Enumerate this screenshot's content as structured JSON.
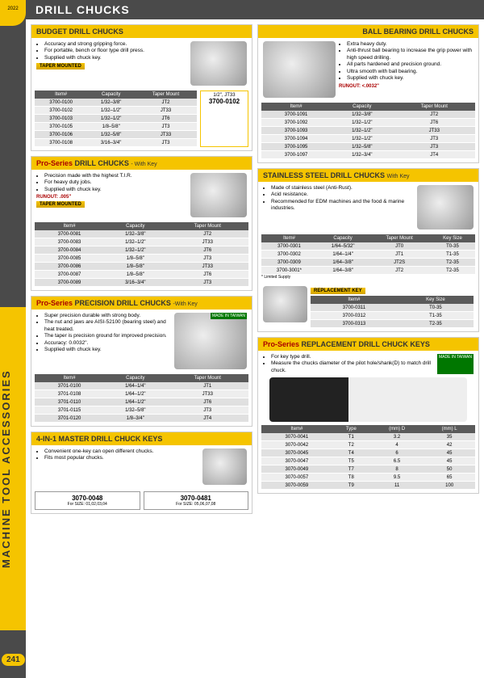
{
  "header": "DRILL CHUCKS",
  "sidebar": "MACHINE TOOL ACCESSORIES",
  "pageNum": "241",
  "badge": "2022",
  "budget": {
    "title": "BUDGET DRILL CHUCKS",
    "bullets": [
      "Accuracy and strong gripping force.",
      "For portable, bench or floor type drill press.",
      "Supplied with chuck key."
    ],
    "tag": "TAPER MOUNTED",
    "callout": {
      "top": "1/2\", JT33",
      "num": "3700-0102"
    },
    "cols": [
      "Item#",
      "Capacity",
      "Taper Mount"
    ],
    "rows": [
      [
        "3700-0100",
        "1/32–3/8\"",
        "JT2"
      ],
      [
        "3700-0102",
        "1/32–1/2\"",
        "JT33"
      ],
      [
        "3700-0103",
        "1/32–1/2\"",
        "JT6"
      ],
      [
        "3700-0105",
        "1/8–5/8\"",
        "JT3"
      ],
      [
        "3700-0106",
        "1/32–5/8\"",
        "JT33"
      ],
      [
        "3700-0108",
        "3/16–3/4\"",
        "JT3"
      ]
    ]
  },
  "proKey": {
    "title1": "Pro-Series ",
    "title2": "DRILL CHUCKS",
    "sub": "- With Key",
    "bullets": [
      "Precision made with the highest T.I.R.",
      "For heavy duty jobs.",
      "Supplied with chuck key."
    ],
    "runout": "RUNOUT: .005\"",
    "tag": "TAPER MOUNTED",
    "cols": [
      "Item#",
      "Capacity",
      "Taper Mount"
    ],
    "rows": [
      [
        "3700-0081",
        "1/32–3/8\"",
        "JT2"
      ],
      [
        "3700-0083",
        "1/32–1/2\"",
        "JT33"
      ],
      [
        "3700-0084",
        "1/32–1/2\"",
        "JT6"
      ],
      [
        "3700-0085",
        "1/8–5/8\"",
        "JT3"
      ],
      [
        "3700-0086",
        "1/8–5/8\"",
        "JT33"
      ],
      [
        "3700-0087",
        "1/8–5/8\"",
        "JT6"
      ],
      [
        "3700-0089",
        "3/16–3/4\"",
        "JT3"
      ]
    ]
  },
  "precision": {
    "title1": "Pro-Series ",
    "title2": "PRECISION DRILL CHUCKS",
    "sub": "-With Key",
    "bullets": [
      "Super precision durable with strong body.",
      "The nut and jaws are AISI-52100 (bearing steel) and heat treated.",
      "The taper is precision ground for improved precision.",
      "Accuracy: 0.0032\".",
      "Supplied with chuck key."
    ],
    "made": "MADE IN TAIWAN",
    "cols": [
      "Item#",
      "Capacity",
      "Taper Mount"
    ],
    "rows": [
      [
        "3701-0100",
        "1/64–1/4\"",
        "JT1"
      ],
      [
        "3701-0108",
        "1/64–1/2\"",
        "JT33"
      ],
      [
        "3701-0110",
        "1/64–1/2\"",
        "JT6"
      ],
      [
        "3701-0115",
        "1/32–5/8\"",
        "JT3"
      ],
      [
        "3701-0120",
        "1/8–3/4\"",
        "JT4"
      ]
    ]
  },
  "master": {
    "title": "4-IN-1 MASTER DRILL CHUCK KEYS",
    "bullets": [
      "Convenient one-key can open different chucks.",
      "Fits most popular chucks."
    ],
    "items": [
      {
        "n": "3070-0048",
        "s": "For SIZE: 01,02,03,04"
      },
      {
        "n": "3070-0481",
        "s": "For SIZE: 05,06,07,08"
      }
    ]
  },
  "ball": {
    "title": "BALL BEARING DRILL CHUCKS",
    "bullets": [
      "Extra heavy duty.",
      "Anti-thrust ball bearing to increase the grip power with high speed drilling.",
      "All parts hardened and precision ground.",
      "Ultra smooth with ball bearing.",
      "Supplied with chuck key."
    ],
    "runout": "RUNOUT: <.0032\"",
    "cols": [
      "Item#",
      "Capacity",
      "Taper Mount"
    ],
    "rows": [
      [
        "3700-1091",
        "1/32–3/8\"",
        "JT2"
      ],
      [
        "3700-1092",
        "1/32–1/2\"",
        "JT6"
      ],
      [
        "3700-1093",
        "1/32–1/2\"",
        "JT33"
      ],
      [
        "3700-1094",
        "1/32–1/2\"",
        "JT3"
      ],
      [
        "3700-1095",
        "1/32–5/8\"",
        "JT3"
      ],
      [
        "3700-1097",
        "1/32–3/4\"",
        "JT4"
      ]
    ]
  },
  "stainless": {
    "title": "STAINLESS STEEL DRILL CHUCKS",
    "sub": "With Key",
    "bullets": [
      "Made of stainless steel (Anti-Rust).",
      "Acid resistance.",
      "Recommended for EDM machines and the food & marine industries."
    ],
    "cols": [
      "Item#",
      "Capacity",
      "Taper Mount",
      "Key Size"
    ],
    "rows": [
      [
        "3700-0301",
        "1/64–5/32\"",
        "JT0",
        "T0-35"
      ],
      [
        "3700-0302",
        "1/64–1/4\"",
        "JT1",
        "T1-35"
      ],
      [
        "3700-0309",
        "1/64–3/8\"",
        "JT2S",
        "T2-35"
      ],
      [
        "3700-3001*",
        "1/64–3/8\"",
        "JT2",
        "T2-35"
      ]
    ],
    "note": "* Limited Supply",
    "repTitle": "REPLACEMENT KEY",
    "repCols": [
      "Item#",
      "Key Size"
    ],
    "repRows": [
      [
        "3700-0311",
        "T0-35"
      ],
      [
        "3700-0312",
        "T1-35"
      ],
      [
        "3700-0313",
        "T2-35"
      ]
    ]
  },
  "keys": {
    "title1": "Pro-Series ",
    "title2": "REPLACEMENT DRILL CHUCK KEYS",
    "bullets": [
      "For key type drill.",
      "Measure the chucks diameter of the pilot hole/shank(D) to match drill chuck."
    ],
    "made": "MADE IN TAIWAN",
    "cols": [
      "Item#",
      "Type",
      "(mm) D",
      "(mm) L"
    ],
    "rows": [
      [
        "3070-0041",
        "T1",
        "3.2",
        "35"
      ],
      [
        "3070-0042",
        "T2",
        "4",
        "42"
      ],
      [
        "3070-0045",
        "T4",
        "6",
        "45"
      ],
      [
        "3070-0047",
        "T5",
        "6.5",
        "45"
      ],
      [
        "3070-0049",
        "T7",
        "8",
        "50"
      ],
      [
        "3070-0057",
        "T8",
        "9.5",
        "65"
      ],
      [
        "3070-0059",
        "T9",
        "11",
        "100"
      ]
    ]
  }
}
